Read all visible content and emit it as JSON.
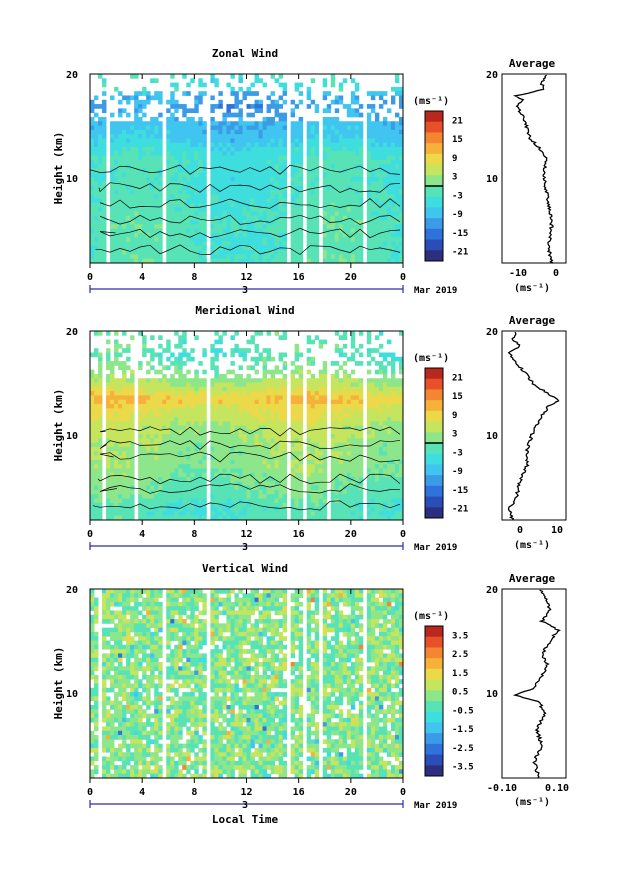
{
  "colors": {
    "palette": [
      "#2b2f7e",
      "#2a4db8",
      "#2f72dc",
      "#3b9be6",
      "#40c4f0",
      "#3fdede",
      "#58e3b6",
      "#8ee68a",
      "#c4e55d",
      "#ebd94a",
      "#f6b13a",
      "#f48632",
      "#e8502a",
      "#b8281e"
    ],
    "contour": "#000000",
    "data_gap": "#ffffff"
  },
  "chart_data": [
    {
      "type": "heatmap",
      "name": "zonal",
      "title": "Zonal Wind",
      "ylabel": "Height (km)",
      "units": "(ms⁻¹)",
      "date_label": "Mar 2019",
      "day_label": "3",
      "x_ticks": [
        "0",
        "4",
        "8",
        "12",
        "16",
        "20",
        "0"
      ],
      "xlim": [
        0,
        24
      ],
      "ylim": [
        2.5,
        20
      ],
      "y_ticks": [
        "10",
        "20"
      ],
      "colorbar": {
        "min": -24,
        "max": 24,
        "ticks": [
          "21",
          "15",
          "9",
          "3",
          "-3",
          "-9",
          "-15",
          "-21"
        ],
        "zero_line": 0
      },
      "profile_shape": [
        [
          2.5,
          -2
        ],
        [
          4,
          -3
        ],
        [
          6,
          -2
        ],
        [
          8,
          -3
        ],
        [
          10,
          -4
        ],
        [
          11,
          -4
        ],
        [
          12,
          -3.5
        ],
        [
          13,
          -5
        ],
        [
          14,
          -8
        ],
        [
          15,
          -9
        ],
        [
          16,
          -10
        ],
        [
          16.6,
          -11
        ],
        [
          17,
          -12
        ],
        [
          17.5,
          -10
        ],
        [
          18,
          -12
        ],
        [
          18.6,
          -4
        ],
        [
          19.2,
          -5
        ],
        [
          20,
          -3
        ]
      ],
      "profile_offset": 0,
      "gaps": [
        [
          1.2,
          1.5
        ],
        [
          5.4,
          5.8
        ],
        [
          8.8,
          9.1
        ],
        [
          15.1,
          15.4
        ],
        [
          16.2,
          16.6
        ],
        [
          17.4,
          17.9
        ],
        [
          20.8,
          21.1
        ]
      ],
      "average": {
        "title": "Average",
        "xlabel": "(ms⁻¹)",
        "x_ticks": [
          "-10",
          "0"
        ],
        "y_ticks": [
          "10",
          "20"
        ],
        "xlim": [
          -16,
          2
        ]
      }
    },
    {
      "type": "heatmap",
      "name": "meridional",
      "title": "Meridional Wind",
      "ylabel": "Height (km)",
      "units": "(ms⁻¹)",
      "date_label": "Mar 2019",
      "day_label": "3",
      "x_ticks": [
        "0",
        "4",
        "8",
        "12",
        "16",
        "20",
        "0"
      ],
      "xlim": [
        0,
        24
      ],
      "ylim": [
        2.5,
        20
      ],
      "y_ticks": [
        "10",
        "20"
      ],
      "colorbar": {
        "min": -24,
        "max": 24,
        "ticks": [
          "21",
          "15",
          "9",
          "3",
          "-3",
          "-9",
          "-15",
          "-21"
        ],
        "zero_line": 0
      },
      "profile_shape": [
        [
          2.5,
          -2
        ],
        [
          3.5,
          -3
        ],
        [
          4.5,
          -1
        ],
        [
          6,
          0
        ],
        [
          7.5,
          2
        ],
        [
          9,
          2
        ],
        [
          10,
          3
        ],
        [
          11,
          4
        ],
        [
          12,
          6
        ],
        [
          13,
          8
        ],
        [
          13.6,
          11
        ],
        [
          14.2,
          8
        ],
        [
          15,
          4
        ],
        [
          16,
          2
        ],
        [
          17,
          -1
        ],
        [
          18,
          -3
        ],
        [
          18.6,
          0
        ],
        [
          19.2,
          -2
        ],
        [
          20,
          -1
        ]
      ],
      "profile_offset": 0,
      "gaps": [
        [
          1.0,
          1.3
        ],
        [
          3.3,
          3.6
        ],
        [
          8.8,
          9.1
        ],
        [
          15.1,
          15.4
        ],
        [
          16.2,
          16.6
        ],
        [
          18.2,
          18.5
        ],
        [
          20.8,
          21.1
        ]
      ],
      "average": {
        "title": "Average",
        "xlabel": "(ms⁻¹)",
        "x_ticks": [
          "0",
          "10"
        ],
        "y_ticks": [
          "10",
          "20"
        ],
        "xlim": [
          -5,
          13
        ]
      }
    },
    {
      "type": "heatmap",
      "name": "vertical",
      "title": "Vertical Wind",
      "ylabel": "Height (km)",
      "xlabel": "Local Time",
      "units": "(ms⁻¹)",
      "date_label": "Mar 2019",
      "day_label": "3",
      "x_ticks": [
        "0",
        "4",
        "8",
        "12",
        "16",
        "20",
        "0"
      ],
      "xlim": [
        0,
        24
      ],
      "ylim": [
        2.5,
        20
      ],
      "y_ticks": [
        "10",
        "20"
      ],
      "colorbar": {
        "min": -4,
        "max": 4,
        "ticks": [
          "3.5",
          "2.5",
          "1.5",
          "0.5",
          "-0.5",
          "-1.5",
          "-2.5",
          "-3.5"
        ],
        "zero_line": null
      },
      "profile_shape": [
        [
          2.5,
          0.02
        ],
        [
          4,
          0.0
        ],
        [
          5.5,
          0.03
        ],
        [
          7,
          0.01
        ],
        [
          8.5,
          0.04
        ],
        [
          9.5,
          0.02
        ],
        [
          10.2,
          -0.07
        ],
        [
          10.8,
          0.0
        ],
        [
          12,
          0.03
        ],
        [
          13,
          0.05
        ],
        [
          14,
          0.03
        ],
        [
          15.5,
          0.07
        ],
        [
          16.2,
          0.09
        ],
        [
          17,
          0.03
        ],
        [
          18,
          0.06
        ],
        [
          19,
          0.05
        ],
        [
          20,
          0.02
        ]
      ],
      "profile_offset": 0,
      "gaps": [
        [
          0.5,
          0.8
        ],
        [
          5.4,
          5.8
        ],
        [
          8.8,
          9.1
        ],
        [
          15.1,
          15.4
        ],
        [
          16.2,
          16.6
        ],
        [
          17.4,
          17.8
        ],
        [
          20.8,
          21.1
        ]
      ],
      "average": {
        "title": "Average",
        "xlabel": "(ms⁻¹)",
        "x_ticks": [
          "-0.10",
          "0.10"
        ],
        "y_ticks": [
          "10",
          "20"
        ],
        "xlim": [
          -0.12,
          0.12
        ]
      }
    }
  ]
}
